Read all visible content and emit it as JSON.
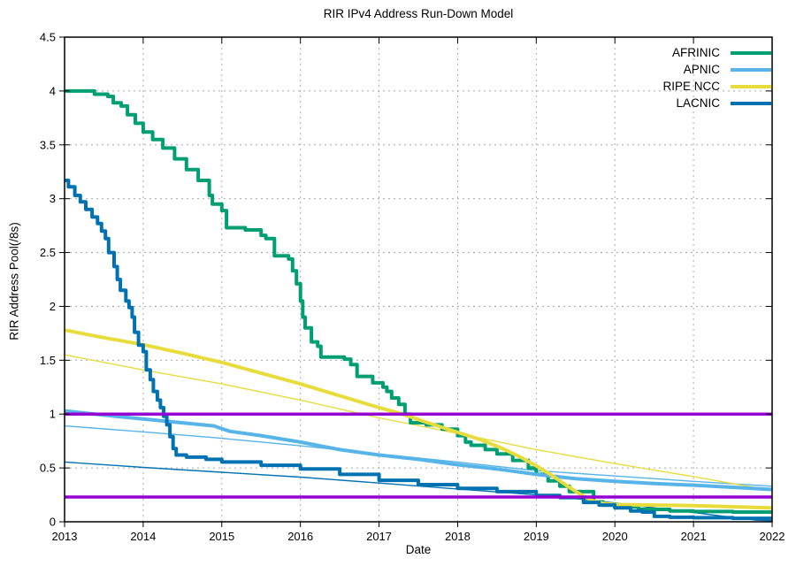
{
  "title": "RIR IPv4 Address Run-Down Model",
  "x_axis_label": "Date",
  "y_axis_label": "RIR Address Pool(/8s)",
  "legend": {
    "position": "top-right",
    "entries": [
      {
        "label": "AFRINIC",
        "color": "#009e73"
      },
      {
        "label": "APNIC",
        "color": "#56b4e9"
      },
      {
        "label": "RIPE NCC",
        "color": "#e8dc3c"
      },
      {
        "label": "LACNIC",
        "color": "#0072b2"
      }
    ]
  },
  "colors": {
    "afrinic": "#009e73",
    "apnic": "#56b4e9",
    "ripe_ncc": "#e8dc3c",
    "lacnic": "#0072b2",
    "threshold": "#9400d3",
    "grid": "#ababab",
    "axis": "#000000",
    "background": "#ffffff"
  },
  "chart_data": {
    "type": "line",
    "title": "RIR IPv4 Address Run-Down Model",
    "xlabel": "Date",
    "ylabel": "RIR Address Pool(/8s)",
    "x_range": [
      2013,
      2022
    ],
    "y_range": [
      0,
      4.5
    ],
    "x_ticks": [
      "2013",
      "2014",
      "2015",
      "2016",
      "2017",
      "2018",
      "2019",
      "2020",
      "2021",
      "2022"
    ],
    "x_tick_values": [
      2013,
      2014,
      2015,
      2016,
      2017,
      2018,
      2019,
      2020,
      2021,
      2022
    ],
    "y_ticks": [
      "0",
      "0.5",
      "1",
      "1.5",
      "2",
      "2.5",
      "3",
      "3.5",
      "4",
      "4.5"
    ],
    "y_tick_values": [
      0,
      0.5,
      1,
      1.5,
      2,
      2.5,
      3,
      3.5,
      4,
      4.5
    ],
    "grid": true,
    "legend_position": "top-right",
    "threshold_lines": [
      {
        "name": "last-/8-threshold",
        "y": 1.0,
        "color": "#9400d3"
      },
      {
        "name": "lower-threshold",
        "y": 0.23,
        "color": "#9400d3"
      }
    ],
    "series": [
      {
        "name": "APNIC (model)",
        "color": "#56b4e9",
        "width": 1.4,
        "style": "linear",
        "points": [
          [
            2013.0,
            0.89
          ],
          [
            2014.0,
            0.835
          ],
          [
            2015.0,
            0.775
          ],
          [
            2016.0,
            0.705
          ],
          [
            2017.0,
            0.63
          ],
          [
            2018.0,
            0.555
          ],
          [
            2019.0,
            0.475
          ],
          [
            2020.0,
            0.425
          ],
          [
            2021.0,
            0.375
          ],
          [
            2022.0,
            0.33
          ]
        ]
      },
      {
        "name": "RIPE NCC (model)",
        "color": "#e8dc3c",
        "width": 1.4,
        "style": "linear",
        "points": [
          [
            2013.0,
            1.55
          ],
          [
            2014.0,
            1.41
          ],
          [
            2015.0,
            1.28
          ],
          [
            2016.0,
            1.13
          ],
          [
            2017.0,
            0.965
          ],
          [
            2018.0,
            0.82
          ],
          [
            2019.0,
            0.67
          ],
          [
            2020.0,
            0.54
          ],
          [
            2021.0,
            0.42
          ],
          [
            2022.0,
            0.29
          ]
        ]
      },
      {
        "name": "LACNIC (model)",
        "color": "#0072b2",
        "width": 1.4,
        "style": "linear",
        "points": [
          [
            2013.0,
            0.555
          ],
          [
            2014.0,
            0.505
          ],
          [
            2015.0,
            0.46
          ],
          [
            2016.0,
            0.415
          ],
          [
            2017.0,
            0.36
          ],
          [
            2018.0,
            0.305
          ],
          [
            2019.0,
            0.25
          ],
          [
            2019.5,
            0.215
          ],
          [
            2020.0,
            0.175
          ],
          [
            2020.5,
            0.13
          ],
          [
            2021.0,
            0.085
          ],
          [
            2021.5,
            0.04
          ],
          [
            2021.8,
            0.015
          ],
          [
            2022.0,
            0.01
          ]
        ]
      },
      {
        "name": "AFRINIC (actual)",
        "color": "#009e73",
        "width": 4,
        "style": "steps",
        "points": [
          [
            2013.0,
            4.0
          ],
          [
            2013.38,
            3.97
          ],
          [
            2013.55,
            3.95
          ],
          [
            2013.62,
            3.89
          ],
          [
            2013.72,
            3.86
          ],
          [
            2013.8,
            3.78
          ],
          [
            2013.9,
            3.7
          ],
          [
            2014.0,
            3.62
          ],
          [
            2014.12,
            3.55
          ],
          [
            2014.25,
            3.47
          ],
          [
            2014.4,
            3.37
          ],
          [
            2014.55,
            3.27
          ],
          [
            2014.7,
            3.17
          ],
          [
            2014.84,
            3.03
          ],
          [
            2014.88,
            2.95
          ],
          [
            2015.0,
            2.89
          ],
          [
            2015.06,
            2.73
          ],
          [
            2015.3,
            2.71
          ],
          [
            2015.5,
            2.66
          ],
          [
            2015.56,
            2.63
          ],
          [
            2015.67,
            2.47
          ],
          [
            2015.85,
            2.44
          ],
          [
            2015.9,
            2.33
          ],
          [
            2015.95,
            2.21
          ],
          [
            2016.0,
            2.05
          ],
          [
            2016.03,
            1.9
          ],
          [
            2016.06,
            1.8
          ],
          [
            2016.14,
            1.67
          ],
          [
            2016.22,
            1.63
          ],
          [
            2016.26,
            1.53
          ],
          [
            2016.56,
            1.51
          ],
          [
            2016.64,
            1.46
          ],
          [
            2016.72,
            1.35
          ],
          [
            2016.92,
            1.29
          ],
          [
            2017.05,
            1.25
          ],
          [
            2017.1,
            1.21
          ],
          [
            2017.16,
            1.15
          ],
          [
            2017.25,
            1.09
          ],
          [
            2017.33,
            1.0
          ],
          [
            2017.4,
            0.92
          ],
          [
            2017.6,
            0.9
          ],
          [
            2017.8,
            0.86
          ],
          [
            2018.0,
            0.8
          ],
          [
            2018.1,
            0.74
          ],
          [
            2018.17,
            0.71
          ],
          [
            2018.35,
            0.67
          ],
          [
            2018.5,
            0.63
          ],
          [
            2018.7,
            0.57
          ],
          [
            2018.9,
            0.5
          ],
          [
            2019.0,
            0.44
          ],
          [
            2019.15,
            0.38
          ],
          [
            2019.3,
            0.33
          ],
          [
            2019.42,
            0.28
          ],
          [
            2019.73,
            0.185
          ],
          [
            2019.85,
            0.155
          ],
          [
            2020.0,
            0.14
          ],
          [
            2020.3,
            0.115
          ],
          [
            2020.7,
            0.1
          ],
          [
            2021.0,
            0.095
          ],
          [
            2021.5,
            0.09
          ],
          [
            2022.0,
            0.085
          ]
        ]
      },
      {
        "name": "APNIC (actual)",
        "color": "#56b4e9",
        "width": 4,
        "style": "linear",
        "points": [
          [
            2013.0,
            1.03
          ],
          [
            2013.5,
            0.99
          ],
          [
            2014.0,
            0.955
          ],
          [
            2014.9,
            0.89
          ],
          [
            2015.1,
            0.84
          ],
          [
            2015.5,
            0.8
          ],
          [
            2016.0,
            0.74
          ],
          [
            2016.5,
            0.67
          ],
          [
            2017.0,
            0.62
          ],
          [
            2017.5,
            0.58
          ],
          [
            2018.0,
            0.53
          ],
          [
            2018.5,
            0.49
          ],
          [
            2019.0,
            0.44
          ],
          [
            2019.5,
            0.4
          ],
          [
            2020.0,
            0.375
          ],
          [
            2020.5,
            0.355
          ],
          [
            2021.0,
            0.34
          ],
          [
            2021.5,
            0.32
          ],
          [
            2022.0,
            0.3
          ]
        ]
      },
      {
        "name": "RIPE NCC (actual)",
        "color": "#e8dc3c",
        "width": 4,
        "style": "linear",
        "points": [
          [
            2013.0,
            1.78
          ],
          [
            2013.5,
            1.71
          ],
          [
            2014.0,
            1.645
          ],
          [
            2014.5,
            1.565
          ],
          [
            2015.0,
            1.48
          ],
          [
            2015.5,
            1.38
          ],
          [
            2016.0,
            1.28
          ],
          [
            2016.5,
            1.17
          ],
          [
            2017.0,
            1.06
          ],
          [
            2017.3,
            1.0
          ],
          [
            2017.6,
            0.925
          ],
          [
            2018.0,
            0.83
          ],
          [
            2018.3,
            0.76
          ],
          [
            2018.6,
            0.67
          ],
          [
            2018.8,
            0.6
          ],
          [
            2019.0,
            0.52
          ],
          [
            2019.2,
            0.43
          ],
          [
            2019.4,
            0.33
          ],
          [
            2019.55,
            0.26
          ],
          [
            2019.7,
            0.2
          ],
          [
            2019.85,
            0.17
          ],
          [
            2020.0,
            0.16
          ],
          [
            2020.5,
            0.155
          ],
          [
            2021.0,
            0.15
          ],
          [
            2021.5,
            0.14
          ],
          [
            2022.0,
            0.128
          ]
        ]
      },
      {
        "name": "LACNIC (actual)",
        "color": "#0072b2",
        "width": 4,
        "style": "steps",
        "points": [
          [
            2013.0,
            3.17
          ],
          [
            2013.05,
            3.11
          ],
          [
            2013.13,
            3.03
          ],
          [
            2013.2,
            2.97
          ],
          [
            2013.27,
            2.9
          ],
          [
            2013.35,
            2.83
          ],
          [
            2013.42,
            2.77
          ],
          [
            2013.47,
            2.7
          ],
          [
            2013.52,
            2.63
          ],
          [
            2013.56,
            2.5
          ],
          [
            2013.63,
            2.37
          ],
          [
            2013.67,
            2.25
          ],
          [
            2013.71,
            2.15
          ],
          [
            2013.78,
            2.05
          ],
          [
            2013.82,
            1.99
          ],
          [
            2013.86,
            1.9
          ],
          [
            2013.89,
            1.76
          ],
          [
            2013.94,
            1.64
          ],
          [
            2014.0,
            1.58
          ],
          [
            2014.04,
            1.41
          ],
          [
            2014.09,
            1.32
          ],
          [
            2014.13,
            1.21
          ],
          [
            2014.18,
            1.13
          ],
          [
            2014.22,
            1.06
          ],
          [
            2014.26,
            0.98
          ],
          [
            2014.3,
            0.9
          ],
          [
            2014.34,
            0.79
          ],
          [
            2014.38,
            0.68
          ],
          [
            2014.42,
            0.62
          ],
          [
            2014.55,
            0.6
          ],
          [
            2014.8,
            0.58
          ],
          [
            2015.0,
            0.555
          ],
          [
            2015.5,
            0.525
          ],
          [
            2016.0,
            0.49
          ],
          [
            2016.5,
            0.44
          ],
          [
            2017.0,
            0.385
          ],
          [
            2017.5,
            0.345
          ],
          [
            2018.0,
            0.31
          ],
          [
            2018.5,
            0.28
          ],
          [
            2019.0,
            0.245
          ],
          [
            2019.3,
            0.225
          ],
          [
            2019.6,
            0.18
          ],
          [
            2019.8,
            0.155
          ],
          [
            2020.0,
            0.13
          ],
          [
            2020.2,
            0.1
          ],
          [
            2020.35,
            0.09
          ],
          [
            2020.5,
            0.05
          ],
          [
            2020.7,
            0.042
          ],
          [
            2021.0,
            0.038
          ],
          [
            2021.5,
            0.032
          ],
          [
            2022.0,
            0.027
          ]
        ]
      }
    ]
  }
}
